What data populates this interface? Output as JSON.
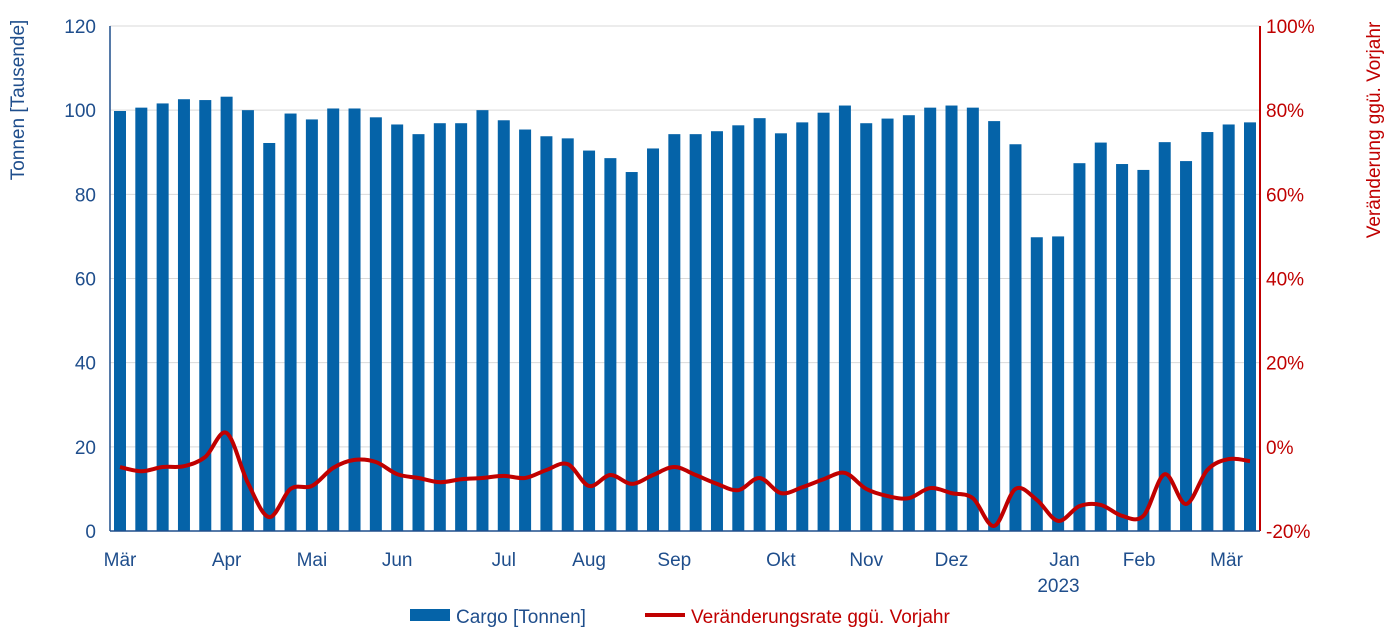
{
  "chart_data": {
    "type": "bar+line",
    "left_axis": {
      "label": "Tonnen [Tausende]",
      "ylim": [
        0,
        120
      ],
      "ticks": [
        0,
        20,
        40,
        60,
        80,
        100,
        120
      ],
      "color": "#1f4e8c"
    },
    "right_axis": {
      "label": "Veränderung ggü. Vorjahr",
      "ylim": [
        -20,
        100
      ],
      "ticks": [
        "-20%",
        "0%",
        "20%",
        "40%",
        "60%",
        "80%",
        "100%"
      ],
      "tick_values": [
        -20,
        0,
        20,
        40,
        60,
        80,
        100
      ],
      "color": "#c00000"
    },
    "x_labels": [
      {
        "label": "Mär",
        "index": 0
      },
      {
        "label": "Apr",
        "index": 5
      },
      {
        "label": "Mai",
        "index": 9
      },
      {
        "label": "Jun",
        "index": 13
      },
      {
        "label": "Jul",
        "index": 18
      },
      {
        "label": "Aug",
        "index": 22
      },
      {
        "label": "Sep",
        "index": 26
      },
      {
        "label": "Okt",
        "index": 31
      },
      {
        "label": "Nov",
        "index": 35
      },
      {
        "label": "Dez",
        "index": 39
      },
      {
        "label": "Jan",
        "index": 44.3,
        "sub": "2023"
      },
      {
        "label": "Feb",
        "index": 47.8
      },
      {
        "label": "Mär",
        "index": 51.9
      }
    ],
    "series": [
      {
        "name": "Cargo [Tonnen]",
        "type": "bar",
        "axis": "left",
        "color": "#0563a8",
        "values": [
          99.8,
          100.6,
          101.6,
          102.6,
          102.4,
          103.2,
          100,
          92.2,
          99.2,
          97.8,
          100.4,
          100.4,
          98.3,
          96.6,
          94.3,
          96.9,
          96.9,
          100,
          97.6,
          95.4,
          93.8,
          93.3,
          90.4,
          88.6,
          85.3,
          90.9,
          94.3,
          94.3,
          95,
          96.4,
          98.1,
          94.5,
          97.1,
          99.4,
          101.1,
          96.9,
          98,
          98.8,
          100.6,
          101.1,
          100.6,
          97.4,
          91.9,
          69.8,
          70,
          87.4,
          92.3,
          87.2,
          85.8,
          92.4,
          87.9,
          94.8,
          96.6,
          97.1
        ]
      },
      {
        "name": "Veränderungsrate ggü. Vorjahr",
        "type": "line",
        "axis": "right",
        "color": "#c00000",
        "values": [
          -4.8,
          -5.8,
          -4.8,
          -4.6,
          -2.4,
          3.3,
          -8.6,
          -16.7,
          -10,
          -9.3,
          -5,
          -3.1,
          -3.6,
          -6.5,
          -7.4,
          -8.4,
          -7.7,
          -7.4,
          -6.9,
          -7.4,
          -5.5,
          -4.1,
          -9.3,
          -6.7,
          -8.8,
          -6.7,
          -4.8,
          -6.7,
          -8.8,
          -10.3,
          -7.4,
          -11,
          -9.6,
          -7.7,
          -6.2,
          -10,
          -11.7,
          -12.2,
          -9.8,
          -11,
          -12.2,
          -18.8,
          -10,
          -12.6,
          -17.6,
          -14.1,
          -13.8,
          -16.4,
          -16.4,
          -6.5,
          -13.6,
          -5.5,
          -2.9,
          -3.4
        ]
      }
    ],
    "legend": {
      "position": "bottom"
    },
    "grid": true
  }
}
